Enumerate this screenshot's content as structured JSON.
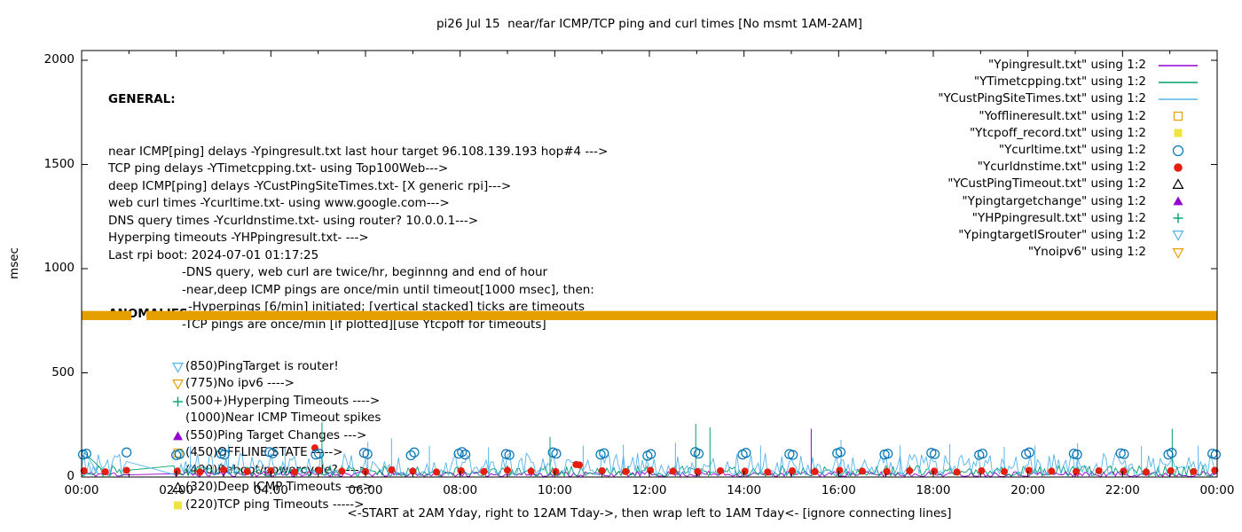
{
  "title": "pi26 Jul 15  near/far ICMP/TCP ping and curl times [No msmt 1AM-2AM]",
  "y_axis_title": "msec",
  "x_axis_title": "<-START at 2AM Yday, right to 12AM Tday->, then wrap left to 1AM Tday<- [ignore connecting lines]",
  "general": {
    "heading": "GENERAL:",
    "lines": [
      "near ICMP[ping] delays -Ypingresult.txt last hour target 96.108.139.193 hop#4 --->",
      "TCP ping delays -YTimetcpping.txt- using Top100Web--->",
      "deep ICMP[ping] delays -YCustPingSiteTimes.txt- [X generic rpi]--->",
      "web curl times -Ycurltime.txt- using www.google.com--->",
      "DNS query times -Ycurldnstime.txt- using router? 10.0.0.1--->",
      "Hyperping timeouts -YHPpingresult.txt- --->",
      "Last rpi boot: 2024-07-01 01:17:25"
    ],
    "sub_lines": [
      "-DNS query, web curl are twice/hr, beginnng and end of hour",
      "-near,deep ICMP pings are once/min until timeout[1000 msec], then:",
      "-Hyperpings [6/min] initiated; [vertical stacked] ticks are timeouts",
      "-TCP pings are once/min [if plotted][use Ytcpoff for timeouts]"
    ]
  },
  "anomalies": {
    "heading": "ANOMALIES:",
    "items": [
      {
        "marker": "triangle-down-open",
        "color": "#56b4e9",
        "text": "(850)PingTarget is router!"
      },
      {
        "marker": "triangle-down-open",
        "color": "#e69f00",
        "text": "(775)No ipv6 ---->",
        "hidden_behind_band": true
      },
      {
        "marker": "plus",
        "color": "#009e73",
        "text": "(500+)Hyperping Timeouts ---->"
      },
      {
        "marker": "none",
        "color": "",
        "text": "(1000)Near ICMP Timeout spikes"
      },
      {
        "marker": "triangle-up-filled",
        "color": "#9400d3",
        "text": "(550)Ping Target Changes --->"
      },
      {
        "marker": "square-open",
        "color": "#e69f00",
        "text": "(450)OFFLINE STATE ----->"
      },
      {
        "marker": "none",
        "color": "",
        "text": "(400)Reboot/powercycle? ---->"
      },
      {
        "marker": "triangle-up-open",
        "color": "#000000",
        "text": "(320)Deep ICMP Timeouts ---->"
      },
      {
        "marker": "square-filled",
        "color": "#f0e442",
        "text": "(220)TCP ping Timeouts ----->"
      }
    ]
  },
  "legend": {
    "items": [
      {
        "label": "\"Ypingresult.txt\" using 1:2",
        "sample": "line",
        "color": "#9400d3"
      },
      {
        "label": "\"YTimetcpping.txt\" using 1:2",
        "sample": "line",
        "color": "#009e73"
      },
      {
        "label": "\"YCustPingSiteTimes.txt\" using 1:2",
        "sample": "line",
        "color": "#56b4e9"
      },
      {
        "label": "\"Yofflineresult.txt\" using 1:2",
        "sample": "square-open",
        "color": "#e69f00"
      },
      {
        "label": "\"Ytcpoff_record.txt\" using 1:2",
        "sample": "square-filled",
        "color": "#f0e442"
      },
      {
        "label": "\"Ycurltime.txt\" using 1:2",
        "sample": "circle-open",
        "color": "#0072b2"
      },
      {
        "label": "\"Ycurldnstime.txt\" using 1:2",
        "sample": "circle-filled",
        "color": "#e51e10"
      },
      {
        "label": "\"YCustPingTimeout.txt\" using 1:2",
        "sample": "triangle-up-open",
        "color": "#000000"
      },
      {
        "label": "\"Ypingtargetchange\" using 1:2",
        "sample": "triangle-up-filled",
        "color": "#9400d3"
      },
      {
        "label": "\"YHPpingresult.txt\" using 1:2",
        "sample": "plus",
        "color": "#009e73"
      },
      {
        "label": "\"YpingtargetISrouter\" using 1:2",
        "sample": "triangle-down-open",
        "color": "#56b4e9"
      },
      {
        "label": "\"Ynoipv6\" using 1:2",
        "sample": "triangle-down-open",
        "color": "#e69f00"
      }
    ]
  },
  "chart_data": {
    "type": "scatter",
    "title": "pi26 Jul 15  near/far ICMP/TCP ping and curl times [No msmt 1AM-2AM]",
    "xlabel": "<-START at 2AM Yday, right to 12AM Tday->, then wrap left to 1AM Tday<- [ignore connecting lines]",
    "ylabel": "msec",
    "xlim_hours": [
      0,
      24
    ],
    "ylim": [
      0,
      2000
    ],
    "y_ticks": [
      0,
      500,
      1000,
      1500,
      2000
    ],
    "x_ticks": [
      {
        "hour": 0,
        "label": "00:00"
      },
      {
        "hour": 2,
        "label": "02:00"
      },
      {
        "hour": 4,
        "label": "04:00"
      },
      {
        "hour": 6,
        "label": "06:00"
      },
      {
        "hour": 8,
        "label": "08:00"
      },
      {
        "hour": 10,
        "label": "10:00"
      },
      {
        "hour": 12,
        "label": "12:00"
      },
      {
        "hour": 14,
        "label": "14:00"
      },
      {
        "hour": 16,
        "label": "16:00"
      },
      {
        "hour": 18,
        "label": "18:00"
      },
      {
        "hour": 20,
        "label": "20:00"
      },
      {
        "hour": 22,
        "label": "22:00"
      },
      {
        "hour": 24,
        "label": "00:00"
      }
    ],
    "minor_x_tick_hours": 1,
    "no_measurement_window_hours": [
      1.0,
      1.95
    ],
    "noipv6_band": {
      "value_msec": 775,
      "half_width_msec": 22,
      "color": "#e69f00",
      "segments_hours": [
        [
          0,
          1.05
        ],
        [
          1.37,
          24
        ]
      ]
    },
    "noise_lines": [
      {
        "name": "Ypingresult near ICMP",
        "color": "#9400d3",
        "range_msec": [
          2,
          28
        ],
        "seed": 11,
        "skew": 1.2
      },
      {
        "name": "YTimetcpping TCP ping",
        "color": "#009e73",
        "range_msec": [
          5,
          55
        ],
        "seed": 23,
        "skew": 1.5
      },
      {
        "name": "YCustPingSiteTimes deep ICMP",
        "color": "#56b4e9",
        "range_msec": [
          10,
          115
        ],
        "seed": 37,
        "skew": 1.7
      }
    ],
    "spikes": [
      {
        "color": "#009e73",
        "points": [
          [
            5.08,
            262
          ],
          [
            9.9,
            192
          ],
          [
            12.98,
            255
          ],
          [
            13.28,
            238
          ],
          [
            23.05,
            232
          ]
        ]
      },
      {
        "color": "#56b4e9",
        "points": [
          [
            2.3,
            148
          ],
          [
            3.1,
            155
          ],
          [
            4.3,
            142
          ],
          [
            6.05,
            168
          ],
          [
            6.55,
            185
          ],
          [
            7.35,
            150
          ],
          [
            8.6,
            142
          ],
          [
            10.6,
            150
          ],
          [
            11.45,
            155
          ],
          [
            12.55,
            165
          ],
          [
            14.35,
            150
          ],
          [
            16.05,
            178
          ],
          [
            17.3,
            152
          ],
          [
            18.35,
            158
          ],
          [
            19.5,
            145
          ],
          [
            20.15,
            150
          ],
          [
            21.05,
            162
          ],
          [
            22.4,
            148
          ],
          [
            23.6,
            150
          ]
        ]
      },
      {
        "color": "#9400d3",
        "points": [
          [
            15.42,
            232
          ]
        ]
      }
    ],
    "curl_times": {
      "color": "#0072b2",
      "marker": "circle-open",
      "points": [
        [
          0.03,
          108
        ],
        [
          0.1,
          112
        ],
        [
          0.95,
          118
        ],
        [
          2.0,
          105
        ],
        [
          2.07,
          110
        ],
        [
          2.95,
          112
        ],
        [
          3.02,
          108
        ],
        [
          3.97,
          120
        ],
        [
          4.04,
          114
        ],
        [
          4.95,
          108
        ],
        [
          5.02,
          112
        ],
        [
          5.97,
          116
        ],
        [
          6.04,
          110
        ],
        [
          6.96,
          104
        ],
        [
          7.03,
          118
        ],
        [
          7.97,
          112
        ],
        [
          8.04,
          120
        ],
        [
          8.11,
          108
        ],
        [
          8.97,
          110
        ],
        [
          9.04,
          106
        ],
        [
          9.96,
          118
        ],
        [
          10.03,
          112
        ],
        [
          10.97,
          108
        ],
        [
          11.04,
          114
        ],
        [
          11.96,
          102
        ],
        [
          12.03,
          110
        ],
        [
          12.97,
          120
        ],
        [
          13.04,
          112
        ],
        [
          13.97,
          108
        ],
        [
          14.04,
          116
        ],
        [
          14.96,
          110
        ],
        [
          15.03,
          106
        ],
        [
          15.97,
          114
        ],
        [
          16.04,
          120
        ],
        [
          16.97,
          108
        ],
        [
          17.04,
          112
        ],
        [
          17.96,
          116
        ],
        [
          18.03,
          110
        ],
        [
          18.97,
          106
        ],
        [
          19.04,
          112
        ],
        [
          19.96,
          110
        ],
        [
          20.03,
          118
        ],
        [
          20.97,
          112
        ],
        [
          21.04,
          108
        ],
        [
          21.96,
          114
        ],
        [
          22.03,
          110
        ],
        [
          22.97,
          108
        ],
        [
          23.04,
          116
        ],
        [
          23.9,
          112
        ],
        [
          23.97,
          108
        ]
      ]
    },
    "dns_times": {
      "color": "#e51e10",
      "marker": "circle-filled",
      "points": [
        [
          0.05,
          30
        ],
        [
          0.5,
          25
        ],
        [
          0.95,
          32
        ],
        [
          2.02,
          28
        ],
        [
          2.5,
          24
        ],
        [
          3.0,
          35
        ],
        [
          3.5,
          26
        ],
        [
          4.0,
          30
        ],
        [
          4.5,
          24
        ],
        [
          4.93,
          140
        ],
        [
          5.02,
          32
        ],
        [
          5.5,
          28
        ],
        [
          6.0,
          26
        ],
        [
          6.55,
          34
        ],
        [
          7.0,
          28
        ],
        [
          7.5,
          24
        ],
        [
          8.02,
          30
        ],
        [
          8.5,
          26
        ],
        [
          9.0,
          32
        ],
        [
          9.5,
          28
        ],
        [
          10.02,
          26
        ],
        [
          10.45,
          60
        ],
        [
          10.52,
          58
        ],
        [
          11.0,
          30
        ],
        [
          11.5,
          26
        ],
        [
          12.02,
          32
        ],
        [
          12.5,
          28
        ],
        [
          13.02,
          26
        ],
        [
          13.5,
          30
        ],
        [
          14.02,
          28
        ],
        [
          14.5,
          24
        ],
        [
          15.02,
          30
        ],
        [
          15.5,
          26
        ],
        [
          16.02,
          32
        ],
        [
          16.5,
          28
        ],
        [
          17.02,
          26
        ],
        [
          17.5,
          30
        ],
        [
          18.02,
          28
        ],
        [
          18.5,
          24
        ],
        [
          19.02,
          30
        ],
        [
          19.5,
          26
        ],
        [
          20.02,
          32
        ],
        [
          20.5,
          28
        ],
        [
          21.02,
          26
        ],
        [
          21.5,
          30
        ],
        [
          22.02,
          28
        ],
        [
          22.5,
          24
        ],
        [
          23.02,
          30
        ],
        [
          23.5,
          26
        ],
        [
          23.95,
          32
        ]
      ]
    },
    "connectors": [
      {
        "color": "#56b4e9",
        "points": [
          [
            0.05,
            125
          ],
          [
            0.35,
            15
          ]
        ]
      },
      {
        "color": "#009e73",
        "points": [
          [
            0.05,
            118
          ],
          [
            0.55,
            12
          ]
        ]
      }
    ]
  }
}
